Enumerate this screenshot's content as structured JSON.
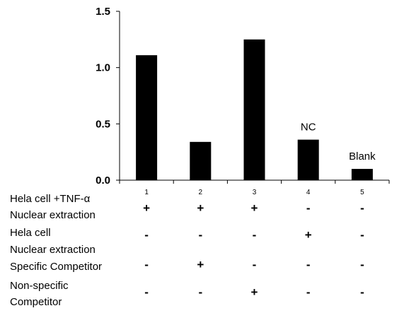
{
  "chart_data": {
    "type": "bar",
    "title": "",
    "xlabel": "",
    "ylabel": "",
    "categories": [
      "1",
      "2",
      "3",
      "4",
      "5"
    ],
    "values": [
      1.11,
      0.34,
      1.25,
      0.36,
      0.1
    ],
    "ylim": [
      0,
      1.5
    ],
    "yticks": [
      {
        "value": 0.0,
        "label": "0.0"
      },
      {
        "value": 0.5,
        "label": "0.5"
      },
      {
        "value": 1.0,
        "label": "1.0"
      },
      {
        "value": 1.5,
        "label": "1.5"
      }
    ],
    "bar_color": "#000000",
    "grid": false,
    "legend": "none",
    "annotations": [
      {
        "category": "4",
        "text": "NC"
      },
      {
        "category": "5",
        "text": "Blank"
      }
    ]
  },
  "conditions_table": {
    "rows": [
      {
        "label_lines": [
          "Hela cell +TNF-α",
          "Nuclear extraction"
        ],
        "signs": [
          "+",
          "+",
          "+",
          "-",
          "-"
        ]
      },
      {
        "label_lines": [
          "Hela cell",
          "Nuclear extraction"
        ],
        "signs": [
          "-",
          "-",
          "-",
          "+",
          "-"
        ]
      },
      {
        "label_lines": [
          "Specific Competitor"
        ],
        "signs": [
          "-",
          "+",
          "-",
          "-",
          "-"
        ]
      },
      {
        "label_lines": [
          "Non-specific",
          "Competitor"
        ],
        "signs": [
          "-",
          "-",
          "+",
          "-",
          "-"
        ]
      }
    ]
  }
}
